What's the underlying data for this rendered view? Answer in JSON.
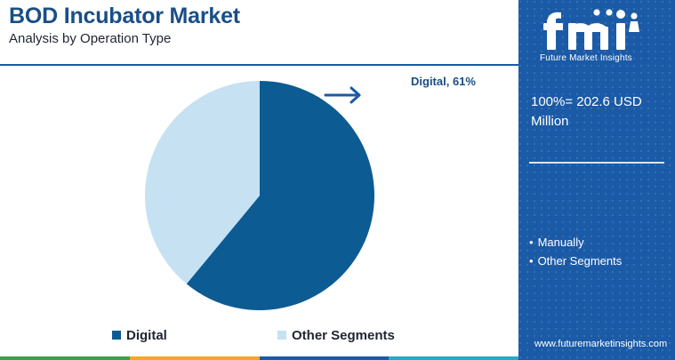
{
  "header": {
    "title": "BOD Incubator Market",
    "subtitle": "Analysis by Operation Type"
  },
  "chart_data": {
    "type": "pie",
    "categories": [
      "Digital",
      "Other Segments"
    ],
    "values": [
      61,
      39
    ],
    "unit": "%",
    "data_labels": [
      "Digital, 61%"
    ],
    "legend": [
      "Digital",
      "Other Segments"
    ],
    "legend_position": "bottom",
    "colors": [
      "#0c5b93",
      "#c6e1f2"
    ]
  },
  "sidebar": {
    "brand": "Future Market Insights",
    "total": "100%= 202.6 USD Million",
    "segments": [
      "Manually",
      "Other Segments"
    ],
    "website": "www.futuremarketinsights.com"
  },
  "colors": {
    "title": "#1a4e86",
    "sidebar_bg": "#1a5aa6",
    "arrow": "#1a5aa6",
    "bottom_strip": [
      "#3aa14b",
      "#f5a623",
      "#1a5aa6",
      "#27a9c9"
    ]
  }
}
